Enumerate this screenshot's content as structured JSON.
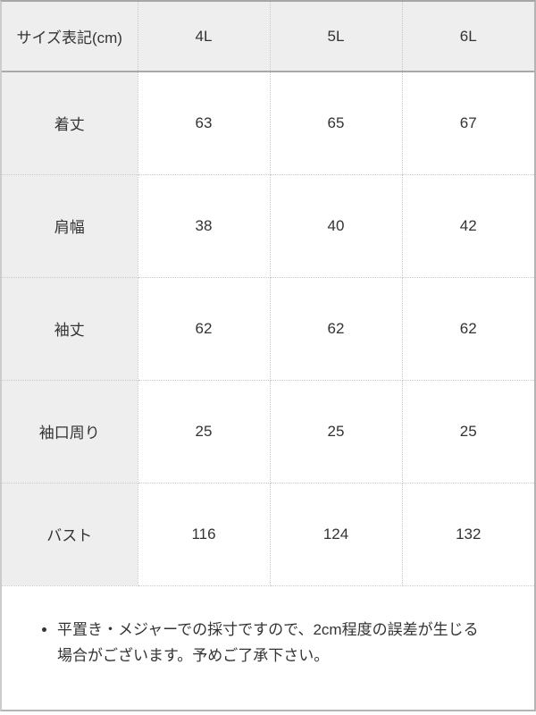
{
  "size_table": {
    "columns": [
      "サイズ表記(cm)",
      "4L",
      "5L",
      "6L"
    ],
    "rows": [
      {
        "label": "着丈",
        "values": [
          "63",
          "65",
          "67"
        ]
      },
      {
        "label": "肩幅",
        "values": [
          "38",
          "40",
          "42"
        ]
      },
      {
        "label": "袖丈",
        "values": [
          "62",
          "62",
          "62"
        ]
      },
      {
        "label": "袖口周り",
        "values": [
          "25",
          "25",
          "25"
        ]
      },
      {
        "label": "バスト",
        "values": [
          "116",
          "124",
          "132"
        ]
      }
    ]
  },
  "notes": {
    "items": [
      "平置き・メジャーでの採寸ですので、2cm程度の誤差が生じる場合がございます。予めご了承下さい。"
    ]
  },
  "colors": {
    "header_bg": "#eeeeee",
    "label_column_bg": "#eeeeee",
    "outer_border": "#b4b4b4",
    "header_underline": "#a9a9a9",
    "inner_border_dotted": "#c8c8c8",
    "text": "#333333"
  }
}
